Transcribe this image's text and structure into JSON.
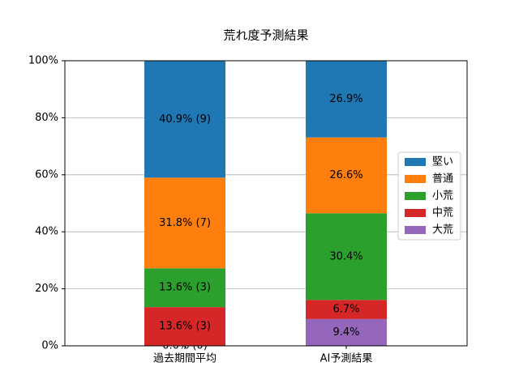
{
  "chart_data": {
    "type": "stacked_bar",
    "title": "荒れ度予測結果",
    "categories": [
      "過去期間平均",
      "AI予測結果"
    ],
    "series": [
      {
        "name": "堅い",
        "color": "#1f77b4",
        "values": [
          40.9,
          26.9
        ],
        "value_labels": [
          "40.9% (9)",
          "26.9%"
        ]
      },
      {
        "name": "普通",
        "color": "#ff7f0e",
        "values": [
          31.8,
          26.6
        ],
        "value_labels": [
          "31.8% (7)",
          "26.6%"
        ]
      },
      {
        "name": "小荒",
        "color": "#2ca02c",
        "values": [
          13.6,
          30.4
        ],
        "value_labels": [
          "13.6% (3)",
          "30.4%"
        ]
      },
      {
        "name": "中荒",
        "color": "#d62728",
        "values": [
          13.6,
          6.7
        ],
        "value_labels": [
          "13.6% (3)",
          "6.7%"
        ]
      },
      {
        "name": "大荒",
        "color": "#9467bd",
        "values": [
          0.0,
          9.4
        ],
        "value_labels": [
          "0.0% (0)",
          "9.4%"
        ]
      }
    ],
    "ylim": [
      0,
      100
    ],
    "yticks": [
      {
        "value": 0,
        "label": "0%"
      },
      {
        "value": 20,
        "label": "20%"
      },
      {
        "value": 40,
        "label": "40%"
      },
      {
        "value": 60,
        "label": "60%"
      },
      {
        "value": 80,
        "label": "80%"
      },
      {
        "value": 100,
        "label": "100%"
      }
    ],
    "grid": true,
    "legend": "right"
  }
}
